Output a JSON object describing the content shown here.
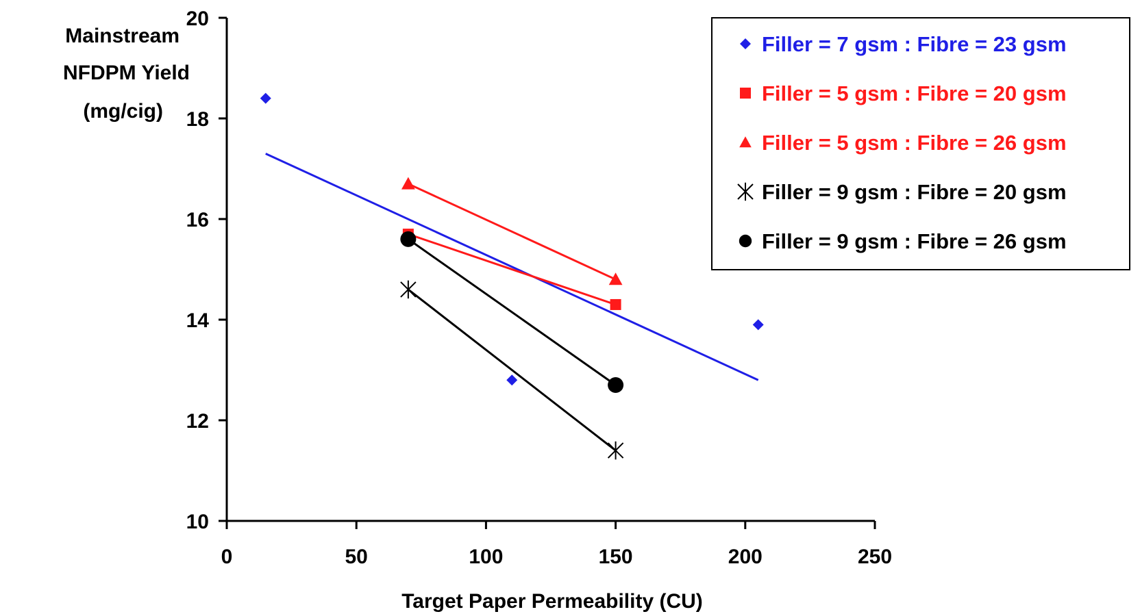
{
  "chart_data": {
    "type": "scatter",
    "xlabel": "Target Paper Permeability (CU)",
    "ylabel_lines": [
      "Mainstream",
      "NFDPM Yield",
      "(mg/cig)"
    ],
    "xlim": [
      0,
      250
    ],
    "ylim": [
      10,
      20
    ],
    "x_ticks": [
      0,
      50,
      100,
      150,
      200,
      250
    ],
    "y_ticks": [
      10,
      12,
      14,
      16,
      18,
      20
    ],
    "grid": false,
    "legend_position": "top-right",
    "series": [
      {
        "name": "Filler = 7 gsm : Fibre = 23 gsm",
        "color": "#1f1fe6",
        "marker": "diamond",
        "x": [
          15,
          110,
          205
        ],
        "y": [
          18.4,
          12.8,
          13.9
        ],
        "trendline": {
          "x": [
            15,
            205
          ],
          "y": [
            17.3,
            12.8
          ]
        }
      },
      {
        "name": "Filler = 5 gsm : Fibre = 20 gsm",
        "color": "#ff1a1a",
        "marker": "square",
        "x": [
          70,
          150
        ],
        "y": [
          15.7,
          14.3
        ],
        "trendline": {
          "x": [
            70,
            150
          ],
          "y": [
            15.7,
            14.3
          ]
        }
      },
      {
        "name": "Filler = 5 gsm : Fibre = 26 gsm",
        "color": "#ff1a1a",
        "marker": "triangle",
        "x": [
          70,
          150
        ],
        "y": [
          16.7,
          14.8
        ],
        "trendline": {
          "x": [
            70,
            150
          ],
          "y": [
            16.7,
            14.8
          ]
        }
      },
      {
        "name": "Filler = 9 gsm : Fibre = 20 gsm",
        "color": "#000000",
        "marker": "asterisk",
        "x": [
          70,
          150
        ],
        "y": [
          14.6,
          11.4
        ],
        "trendline": {
          "x": [
            70,
            150
          ],
          "y": [
            14.6,
            11.4
          ]
        }
      },
      {
        "name": "Filler = 9 gsm : Fibre = 26 gsm",
        "color": "#000000",
        "marker": "circle",
        "x": [
          70,
          150
        ],
        "y": [
          15.6,
          12.7
        ],
        "trendline": {
          "x": [
            70,
            150
          ],
          "y": [
            15.6,
            12.7
          ]
        }
      }
    ],
    "legend_text_colors": [
      "#1f1fe6",
      "#ff1a1a",
      "#ff1a1a",
      "#000000",
      "#000000"
    ]
  }
}
